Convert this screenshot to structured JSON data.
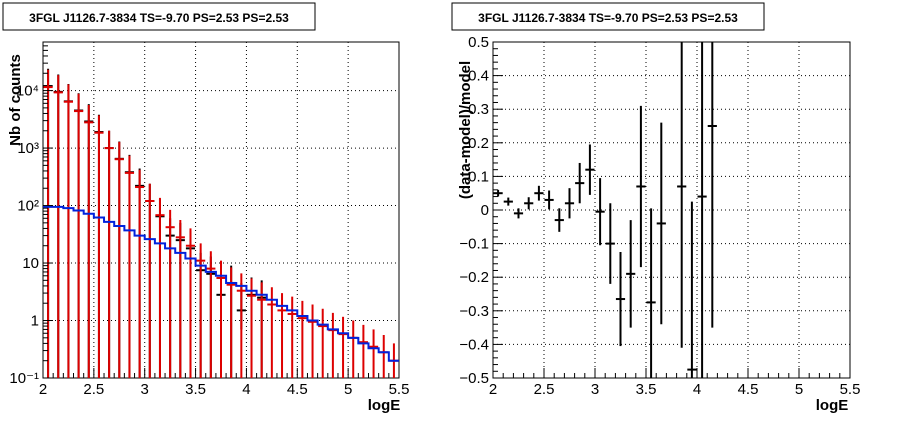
{
  "chart_data": [
    {
      "type": "scatter",
      "title": "3FGL J1126.7-3834 TS=-9.70 PS=2.53 PS=2.53",
      "xlabel": "logE",
      "ylabel": "Nb of counts",
      "xlim": [
        2,
        5.5
      ],
      "ylim": [
        0.1,
        70000
      ],
      "yscale": "log",
      "grid": true,
      "x_ticks": [
        2,
        2.5,
        3,
        3.5,
        4,
        4.5,
        5,
        5.5
      ],
      "x_tick_labels": [
        "2",
        "2.5",
        "3",
        "3.5",
        "4",
        "4.5",
        "5",
        "5.5"
      ],
      "y_ticks": [
        0.1,
        1,
        10,
        100,
        1000,
        10000
      ],
      "y_tick_labels": [
        "10⁻¹",
        "1",
        "10",
        "10²",
        "10³",
        "10⁴"
      ],
      "bin_width": 0.1,
      "series": [
        {
          "color": "#000000",
          "style": "errorbar",
          "x": [
            2.05,
            2.15,
            2.25,
            2.35,
            2.45,
            2.55,
            2.65,
            2.75,
            2.85,
            2.95,
            3.05,
            3.15,
            3.25,
            3.35,
            3.45,
            3.55,
            3.65,
            3.75,
            3.85,
            3.95,
            4.05,
            4.15
          ],
          "y": [
            12000,
            9500,
            6500,
            4500,
            2900,
            1900,
            1000,
            650,
            380,
            220,
            120,
            65,
            30,
            25,
            18,
            7.5,
            6.5,
            2.8,
            4.5,
            1.5,
            2.8,
            2.5
          ],
          "err_low": [
            12000,
            9500,
            6500,
            4500,
            2900,
            1900,
            1000,
            650,
            380,
            220,
            120,
            65,
            30,
            25,
            18,
            7.5,
            6.5,
            1.5,
            4.5,
            0.8,
            2.8,
            2.5
          ],
          "err_high": [
            12000,
            9500,
            6500,
            4500,
            2900,
            1900,
            1000,
            650,
            380,
            220,
            120,
            65,
            30,
            25,
            18,
            7.5,
            6.5,
            4.5,
            4.5,
            3.0,
            2.8,
            2.5
          ]
        },
        {
          "color": "#dd0000",
          "style": "errorbar",
          "x": [
            2.05,
            2.15,
            2.25,
            2.35,
            2.45,
            2.55,
            2.65,
            2.75,
            2.85,
            2.95,
            3.05,
            3.15,
            3.25,
            3.35,
            3.45,
            3.55,
            3.65,
            3.75,
            3.85,
            3.95,
            4.05,
            4.15,
            4.25,
            4.35,
            4.45,
            4.55,
            4.65,
            4.75,
            4.85,
            4.95,
            5.05,
            5.15,
            5.25,
            5.35,
            5.45
          ],
          "y": [
            11500,
            9300,
            6400,
            4400,
            2800,
            1850,
            1000,
            640,
            370,
            210,
            120,
            68,
            42,
            28,
            20,
            11,
            8,
            5.5,
            4.2,
            3.3,
            2.7,
            2.3,
            1.9,
            1.5,
            1.3,
            1.1,
            0.95,
            0.8,
            0.68,
            0.58,
            0.5,
            0.42,
            0.35,
            0.28,
            0.2
          ],
          "err_low": [
            11500,
            9300,
            6400,
            4400,
            2800,
            1850,
            1000,
            640,
            370,
            210,
            120,
            68,
            42,
            28,
            20,
            11,
            8,
            5.5,
            4.2,
            3.3,
            2.7,
            2.3,
            1.9,
            1.5,
            1.3,
            1.1,
            0.95,
            0.8,
            0.68,
            0.58,
            0.5,
            0.42,
            0.35,
            0.28,
            0.2
          ],
          "err_high": [
            11500,
            9300,
            6400,
            4400,
            2800,
            1850,
            1000,
            640,
            370,
            210,
            120,
            68,
            42,
            28,
            20,
            11,
            8,
            5.5,
            4.2,
            3.3,
            2.7,
            2.3,
            1.9,
            1.5,
            1.3,
            1.1,
            0.95,
            0.8,
            0.68,
            0.58,
            0.5,
            0.42,
            0.35,
            0.28,
            0.2
          ]
        },
        {
          "color": "#0022dd",
          "style": "step",
          "x": [
            2.05,
            2.15,
            2.25,
            2.35,
            2.45,
            2.55,
            2.65,
            2.75,
            2.85,
            2.95,
            3.05,
            3.15,
            3.25,
            3.35,
            3.45,
            3.55,
            3.65,
            3.75,
            3.85,
            3.95,
            4.05,
            4.15,
            4.25,
            4.35,
            4.45,
            4.55,
            4.65,
            4.75,
            4.85,
            4.95,
            5.05,
            5.15,
            5.25,
            5.35,
            5.45
          ],
          "y": [
            95,
            95,
            90,
            82,
            72,
            62,
            52,
            44,
            37,
            30,
            26,
            22,
            18,
            15,
            12,
            9,
            7,
            6,
            4.5,
            4,
            3.3,
            2.8,
            2.3,
            1.8,
            1.5,
            1.2,
            1.0,
            0.85,
            0.7,
            0.6,
            0.5,
            0.4,
            0.33,
            0.28,
            0.2
          ]
        }
      ]
    },
    {
      "type": "scatter",
      "title": "3FGL J1126.7-3834 TS=-9.70 PS=2.53 PS=2.53",
      "xlabel": "logE",
      "ylabel": "(data-model)/model",
      "xlim": [
        2,
        5.5
      ],
      "ylim": [
        -0.5,
        0.5
      ],
      "grid": true,
      "x_ticks": [
        2,
        2.5,
        3,
        3.5,
        4,
        4.5,
        5,
        5.5
      ],
      "x_tick_labels": [
        "2",
        "2.5",
        "3",
        "3.5",
        "4",
        "4.5",
        "5",
        "5.5"
      ],
      "y_ticks": [
        -0.5,
        -0.4,
        -0.3,
        -0.2,
        -0.1,
        0,
        0.1,
        0.2,
        0.3,
        0.4,
        0.5
      ],
      "y_tick_labels": [
        "−0.5",
        "−0.4",
        "−0.3",
        "−0.2",
        "−0.1",
        "0",
        "0.1",
        "0.2",
        "0.3",
        "0.4",
        "0.5"
      ],
      "bin_width": 0.1,
      "series": [
        {
          "color": "#000000",
          "style": "errorbar",
          "x": [
            2.05,
            2.15,
            2.25,
            2.35,
            2.45,
            2.55,
            2.65,
            2.75,
            2.85,
            2.95,
            3.05,
            3.15,
            3.25,
            3.35,
            3.45,
            3.55,
            3.65,
            3.85,
            3.95,
            4.05,
            4.15
          ],
          "y": [
            0.05,
            0.025,
            -0.01,
            0.02,
            0.05,
            0.03,
            -0.03,
            0.02,
            0.08,
            0.12,
            -0.005,
            -0.1,
            -0.265,
            -0.19,
            0.07,
            -0.275,
            -0.04,
            0.07,
            -0.475,
            0.04,
            0.25
          ],
          "err": [
            0.01,
            0.012,
            0.015,
            0.018,
            0.022,
            0.028,
            0.035,
            0.045,
            0.06,
            0.075,
            0.1,
            0.12,
            0.14,
            0.16,
            0.24,
            0.28,
            0.3,
            0.48,
            0.5,
            0.55,
            0.6
          ]
        }
      ]
    }
  ]
}
